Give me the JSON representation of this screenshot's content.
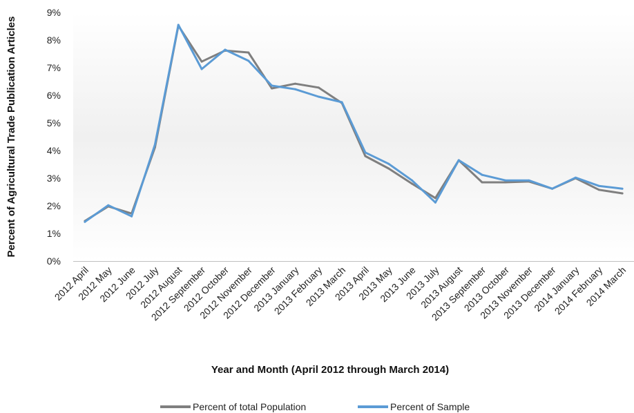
{
  "chart_data": {
    "type": "line",
    "title": "",
    "xlabel": "Year and Month (April 2012 through March 2014)",
    "ylabel": "Percent of Agricultural Trade Publication Articles",
    "ylim": [
      0,
      9
    ],
    "y_ticks": [
      "0%",
      "1%",
      "2%",
      "3%",
      "4%",
      "5%",
      "6%",
      "7%",
      "8%",
      "9%"
    ],
    "categories": [
      "2012 April",
      "2012 May",
      "2012 June",
      "2012 July",
      "2012 August",
      "2012 September",
      "2012 October",
      "2012 November",
      "2012 December",
      "2013 January",
      "2013 February",
      "2013 March",
      "2013 April",
      "2013 May",
      "2013 June",
      "2013 July",
      "2013 August",
      "2013 September",
      "2013 October",
      "2013 November",
      "2013 December",
      "2014 January",
      "2014 February",
      "2014 March"
    ],
    "series": [
      {
        "name": "Percent of total Population",
        "color": "#7f7f7f",
        "values": [
          1.45,
          1.98,
          1.72,
          4.12,
          8.52,
          7.22,
          7.62,
          7.55,
          6.25,
          6.42,
          6.28,
          5.72,
          3.8,
          3.35,
          2.8,
          2.28,
          3.65,
          2.85,
          2.85,
          2.88,
          2.62,
          3.0,
          2.58,
          2.45
        ]
      },
      {
        "name": "Percent of Sample",
        "color": "#5b9bd5",
        "values": [
          1.42,
          2.02,
          1.62,
          4.22,
          8.55,
          6.95,
          7.65,
          7.25,
          6.35,
          6.22,
          5.95,
          5.75,
          3.93,
          3.52,
          2.92,
          2.12,
          3.65,
          3.12,
          2.92,
          2.92,
          2.62,
          3.02,
          2.72,
          2.62
        ]
      }
    ],
    "grid": false,
    "legend_position": "bottom"
  }
}
